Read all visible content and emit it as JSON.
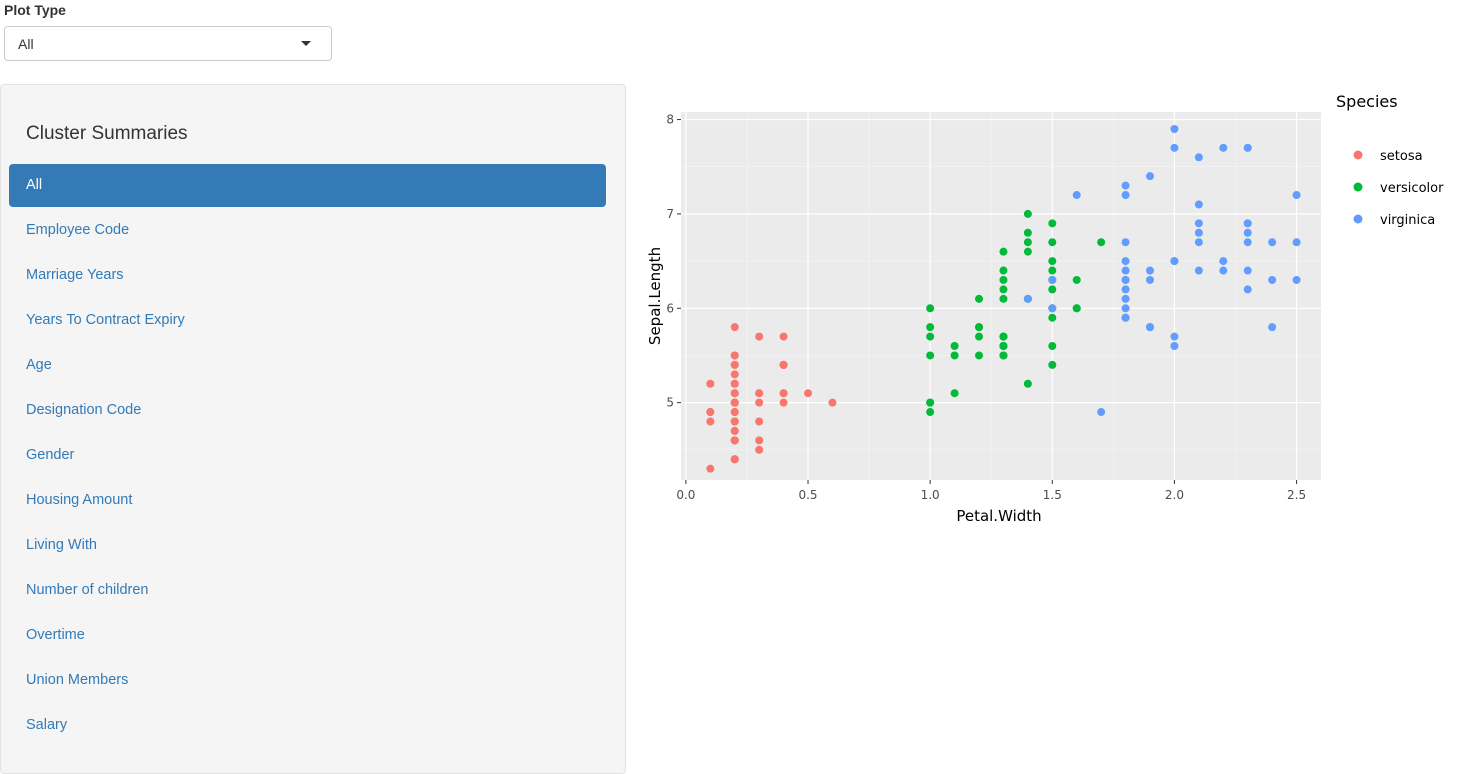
{
  "controls": {
    "plot_type_label": "Plot Type",
    "plot_type_selected": "All"
  },
  "sidebar": {
    "title": "Cluster Summaries",
    "items": [
      {
        "label": "All",
        "active": true
      },
      {
        "label": "Employee Code"
      },
      {
        "label": "Marriage Years"
      },
      {
        "label": "Years To Contract Expiry"
      },
      {
        "label": "Age"
      },
      {
        "label": "Designation Code"
      },
      {
        "label": "Gender"
      },
      {
        "label": "Housing Amount"
      },
      {
        "label": "Living With"
      },
      {
        "label": "Number of children"
      },
      {
        "label": "Overtime"
      },
      {
        "label": "Union Members"
      },
      {
        "label": "Salary"
      }
    ]
  },
  "chart_data": {
    "type": "scatter",
    "xlabel": "Petal.Width",
    "ylabel": "Sepal.Length",
    "xlim": [
      -0.02,
      2.6
    ],
    "ylim": [
      4.18,
      8.08
    ],
    "xticks": [
      "0.0",
      "0.5",
      "1.0",
      "1.5",
      "2.0",
      "2.5"
    ],
    "yticks": [
      "5",
      "6",
      "7",
      "8"
    ],
    "grid": true,
    "legend_title": "Species",
    "legend_position": "right",
    "series": [
      {
        "name": "setosa",
        "color": "#F8766D",
        "points": [
          [
            0.2,
            5.1
          ],
          [
            0.2,
            4.9
          ],
          [
            0.2,
            4.7
          ],
          [
            0.2,
            4.6
          ],
          [
            0.2,
            5.0
          ],
          [
            0.4,
            5.4
          ],
          [
            0.3,
            4.6
          ],
          [
            0.2,
            5.0
          ],
          [
            0.2,
            4.4
          ],
          [
            0.1,
            4.9
          ],
          [
            0.2,
            5.4
          ],
          [
            0.2,
            4.8
          ],
          [
            0.1,
            4.8
          ],
          [
            0.1,
            4.3
          ],
          [
            0.2,
            5.8
          ],
          [
            0.4,
            5.7
          ],
          [
            0.4,
            5.4
          ],
          [
            0.3,
            5.1
          ],
          [
            0.3,
            5.7
          ],
          [
            0.3,
            5.1
          ],
          [
            0.2,
            5.4
          ],
          [
            0.4,
            5.1
          ],
          [
            0.2,
            4.6
          ],
          [
            0.5,
            5.1
          ],
          [
            0.2,
            4.8
          ],
          [
            0.2,
            5.0
          ],
          [
            0.4,
            5.0
          ],
          [
            0.2,
            5.2
          ],
          [
            0.2,
            5.2
          ],
          [
            0.2,
            4.7
          ],
          [
            0.2,
            4.8
          ],
          [
            0.4,
            5.4
          ],
          [
            0.1,
            5.2
          ],
          [
            0.2,
            5.5
          ],
          [
            0.2,
            4.9
          ],
          [
            0.2,
            5.0
          ],
          [
            0.2,
            5.5
          ],
          [
            0.1,
            4.9
          ],
          [
            0.2,
            4.4
          ],
          [
            0.2,
            5.1
          ],
          [
            0.3,
            5.0
          ],
          [
            0.3,
            4.5
          ],
          [
            0.2,
            4.4
          ],
          [
            0.6,
            5.0
          ],
          [
            0.4,
            5.1
          ],
          [
            0.3,
            4.8
          ],
          [
            0.2,
            5.1
          ],
          [
            0.2,
            4.6
          ],
          [
            0.2,
            5.3
          ],
          [
            0.2,
            5.0
          ]
        ]
      },
      {
        "name": "versicolor",
        "color": "#00BA38",
        "points": [
          [
            1.4,
            7.0
          ],
          [
            1.5,
            6.4
          ],
          [
            1.5,
            6.9
          ],
          [
            1.3,
            5.5
          ],
          [
            1.5,
            6.5
          ],
          [
            1.3,
            5.7
          ],
          [
            1.6,
            6.3
          ],
          [
            1.0,
            4.9
          ],
          [
            1.3,
            6.6
          ],
          [
            1.4,
            5.2
          ],
          [
            1.0,
            5.0
          ],
          [
            1.5,
            5.9
          ],
          [
            1.0,
            6.0
          ],
          [
            1.4,
            6.1
          ],
          [
            1.3,
            5.6
          ],
          [
            1.4,
            6.7
          ],
          [
            1.5,
            5.6
          ],
          [
            1.0,
            5.8
          ],
          [
            1.5,
            6.2
          ],
          [
            1.1,
            5.6
          ],
          [
            1.8,
            5.9
          ],
          [
            1.3,
            6.1
          ],
          [
            1.5,
            6.3
          ],
          [
            1.2,
            6.1
          ],
          [
            1.3,
            6.4
          ],
          [
            1.4,
            6.6
          ],
          [
            1.4,
            6.8
          ],
          [
            1.7,
            6.7
          ],
          [
            1.5,
            6.0
          ],
          [
            1.0,
            5.7
          ],
          [
            1.1,
            5.5
          ],
          [
            1.0,
            5.5
          ],
          [
            1.2,
            5.8
          ],
          [
            1.6,
            6.0
          ],
          [
            1.5,
            5.4
          ],
          [
            1.6,
            6.0
          ],
          [
            1.5,
            6.7
          ],
          [
            1.3,
            6.3
          ],
          [
            1.3,
            5.6
          ],
          [
            1.3,
            5.5
          ],
          [
            1.2,
            5.5
          ],
          [
            1.4,
            6.1
          ],
          [
            1.2,
            5.8
          ],
          [
            1.0,
            5.0
          ],
          [
            1.3,
            5.6
          ],
          [
            1.2,
            5.7
          ],
          [
            1.3,
            5.7
          ],
          [
            1.3,
            6.2
          ],
          [
            1.1,
            5.1
          ],
          [
            1.3,
            5.7
          ]
        ]
      },
      {
        "name": "virginica",
        "color": "#619CFF",
        "points": [
          [
            2.5,
            6.3
          ],
          [
            1.9,
            5.8
          ],
          [
            2.1,
            7.1
          ],
          [
            1.8,
            6.3
          ],
          [
            2.2,
            6.5
          ],
          [
            2.1,
            7.6
          ],
          [
            1.7,
            4.9
          ],
          [
            1.8,
            7.3
          ],
          [
            1.8,
            6.7
          ],
          [
            2.5,
            7.2
          ],
          [
            2.0,
            6.5
          ],
          [
            1.9,
            6.4
          ],
          [
            2.1,
            6.8
          ],
          [
            2.0,
            5.7
          ],
          [
            2.4,
            5.8
          ],
          [
            2.3,
            6.4
          ],
          [
            1.8,
            6.5
          ],
          [
            2.2,
            7.7
          ],
          [
            2.3,
            7.7
          ],
          [
            1.5,
            6.0
          ],
          [
            2.3,
            6.9
          ],
          [
            2.0,
            5.6
          ],
          [
            2.0,
            7.7
          ],
          [
            1.8,
            6.3
          ],
          [
            2.1,
            6.7
          ],
          [
            1.8,
            7.2
          ],
          [
            1.8,
            6.2
          ],
          [
            1.8,
            6.1
          ],
          [
            2.1,
            6.4
          ],
          [
            1.6,
            7.2
          ],
          [
            1.9,
            7.4
          ],
          [
            2.0,
            7.9
          ],
          [
            2.2,
            6.4
          ],
          [
            1.5,
            6.3
          ],
          [
            1.4,
            6.1
          ],
          [
            2.3,
            7.7
          ],
          [
            2.4,
            6.3
          ],
          [
            1.8,
            6.4
          ],
          [
            1.8,
            6.0
          ],
          [
            2.1,
            6.9
          ],
          [
            2.4,
            6.7
          ],
          [
            2.3,
            6.9
          ],
          [
            1.9,
            5.8
          ],
          [
            2.3,
            6.8
          ],
          [
            2.5,
            6.7
          ],
          [
            2.3,
            6.7
          ],
          [
            1.9,
            6.3
          ],
          [
            2.0,
            6.5
          ],
          [
            2.3,
            6.2
          ],
          [
            1.8,
            5.9
          ]
        ]
      }
    ]
  }
}
